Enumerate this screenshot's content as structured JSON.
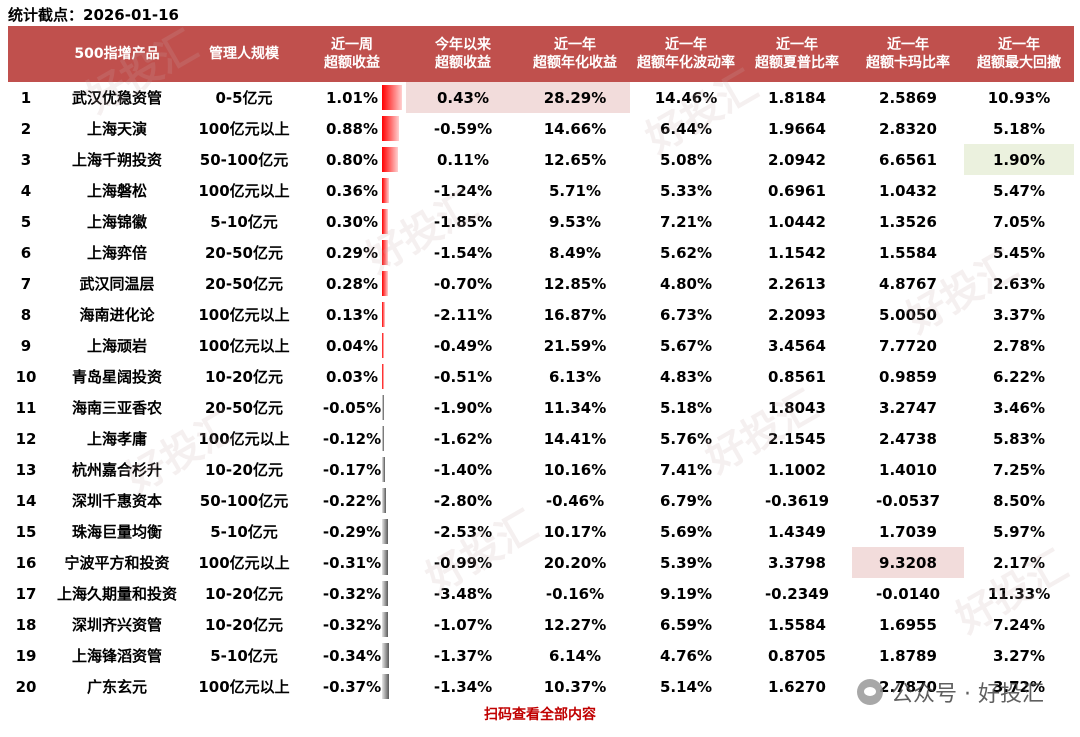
{
  "stat_date": "统计截点：2026-01-16",
  "headers": [
    "",
    "500指增产品",
    "管理人规模",
    "近一周\n超额收益",
    "今年以来\n超额收益",
    "近一年\n超额年化收益",
    "近一年\n超额年化波动率",
    "近一年\n超额夏普比率",
    "近一年\n超额卡玛比率",
    "近一年\n超额最大回撤"
  ],
  "rows": [
    {
      "rank": "1",
      "name": "武汉优稳资管",
      "scale": "0-5亿元",
      "week": "1.01%",
      "ytd": "0.43%",
      "ann_ret": "28.29%",
      "vol": "14.46%",
      "sharpe": "1.8184",
      "calmar": "2.5869",
      "mdd": "10.93%"
    },
    {
      "rank": "2",
      "name": "上海天演",
      "scale": "100亿元以上",
      "week": "0.88%",
      "ytd": "-0.59%",
      "ann_ret": "14.66%",
      "vol": "6.44%",
      "sharpe": "1.9664",
      "calmar": "2.8320",
      "mdd": "5.18%"
    },
    {
      "rank": "3",
      "name": "上海千朔投资",
      "scale": "50-100亿元",
      "week": "0.80%",
      "ytd": "0.11%",
      "ann_ret": "12.65%",
      "vol": "5.08%",
      "sharpe": "2.0942",
      "calmar": "6.6561",
      "mdd": "1.90%"
    },
    {
      "rank": "4",
      "name": "上海磐松",
      "scale": "100亿元以上",
      "week": "0.36%",
      "ytd": "-1.24%",
      "ann_ret": "5.71%",
      "vol": "5.33%",
      "sharpe": "0.6961",
      "calmar": "1.0432",
      "mdd": "5.47%"
    },
    {
      "rank": "5",
      "name": "上海锦徽",
      "scale": "5-10亿元",
      "week": "0.30%",
      "ytd": "-1.85%",
      "ann_ret": "9.53%",
      "vol": "7.21%",
      "sharpe": "1.0442",
      "calmar": "1.3526",
      "mdd": "7.05%"
    },
    {
      "rank": "6",
      "name": "上海弈倍",
      "scale": "20-50亿元",
      "week": "0.29%",
      "ytd": "-1.54%",
      "ann_ret": "8.49%",
      "vol": "5.62%",
      "sharpe": "1.1542",
      "calmar": "1.5584",
      "mdd": "5.45%"
    },
    {
      "rank": "7",
      "name": "武汉同温层",
      "scale": "20-50亿元",
      "week": "0.28%",
      "ytd": "-0.70%",
      "ann_ret": "12.85%",
      "vol": "4.80%",
      "sharpe": "2.2613",
      "calmar": "4.8767",
      "mdd": "2.63%"
    },
    {
      "rank": "8",
      "name": "海南进化论",
      "scale": "100亿元以上",
      "week": "0.13%",
      "ytd": "-2.11%",
      "ann_ret": "16.87%",
      "vol": "6.73%",
      "sharpe": "2.2093",
      "calmar": "5.0050",
      "mdd": "3.37%"
    },
    {
      "rank": "9",
      "name": "上海顽岩",
      "scale": "100亿元以上",
      "week": "0.04%",
      "ytd": "-0.49%",
      "ann_ret": "21.59%",
      "vol": "5.67%",
      "sharpe": "3.4564",
      "calmar": "7.7720",
      "mdd": "2.78%"
    },
    {
      "rank": "10",
      "name": "青岛星阔投资",
      "scale": "10-20亿元",
      "week": "0.03%",
      "ytd": "-0.51%",
      "ann_ret": "6.13%",
      "vol": "4.83%",
      "sharpe": "0.8561",
      "calmar": "0.9859",
      "mdd": "6.22%"
    },
    {
      "rank": "11",
      "name": "海南三亚香农",
      "scale": "20-50亿元",
      "week": "-0.05%",
      "ytd": "-1.90%",
      "ann_ret": "11.34%",
      "vol": "5.18%",
      "sharpe": "1.8043",
      "calmar": "3.2747",
      "mdd": "3.46%"
    },
    {
      "rank": "12",
      "name": "上海孝庸",
      "scale": "100亿元以上",
      "week": "-0.12%",
      "ytd": "-1.62%",
      "ann_ret": "14.41%",
      "vol": "5.76%",
      "sharpe": "2.1545",
      "calmar": "2.4738",
      "mdd": "5.83%"
    },
    {
      "rank": "13",
      "name": "杭州嘉合杉升",
      "scale": "10-20亿元",
      "week": "-0.17%",
      "ytd": "-1.40%",
      "ann_ret": "10.16%",
      "vol": "7.41%",
      "sharpe": "1.1002",
      "calmar": "1.4010",
      "mdd": "7.25%"
    },
    {
      "rank": "14",
      "name": "深圳千惠资本",
      "scale": "50-100亿元",
      "week": "-0.22%",
      "ytd": "-2.80%",
      "ann_ret": "-0.46%",
      "vol": "6.79%",
      "sharpe": "-0.3619",
      "calmar": "-0.0537",
      "mdd": "8.50%"
    },
    {
      "rank": "15",
      "name": "珠海巨量均衡",
      "scale": "5-10亿元",
      "week": "-0.29%",
      "ytd": "-2.53%",
      "ann_ret": "10.17%",
      "vol": "5.69%",
      "sharpe": "1.4349",
      "calmar": "1.7039",
      "mdd": "5.97%"
    },
    {
      "rank": "16",
      "name": "宁波平方和投资",
      "scale": "100亿元以上",
      "week": "-0.31%",
      "ytd": "-0.99%",
      "ann_ret": "20.20%",
      "vol": "5.39%",
      "sharpe": "3.3798",
      "calmar": "9.3208",
      "mdd": "2.17%"
    },
    {
      "rank": "17",
      "name": "上海久期量和投资",
      "scale": "10-20亿元",
      "week": "-0.32%",
      "ytd": "-3.48%",
      "ann_ret": "-0.16%",
      "vol": "9.19%",
      "sharpe": "-0.2349",
      "calmar": "-0.0140",
      "mdd": "11.33%"
    },
    {
      "rank": "18",
      "name": "深圳齐兴资管",
      "scale": "10-20亿元",
      "week": "-0.32%",
      "ytd": "-1.07%",
      "ann_ret": "12.27%",
      "vol": "6.59%",
      "sharpe": "1.5584",
      "calmar": "1.6955",
      "mdd": "7.24%"
    },
    {
      "rank": "19",
      "name": "上海锋滔资管",
      "scale": "5-10亿元",
      "week": "-0.34%",
      "ytd": "-1.37%",
      "ann_ret": "6.14%",
      "vol": "4.76%",
      "sharpe": "0.8705",
      "calmar": "1.8789",
      "mdd": "3.27%"
    },
    {
      "rank": "20",
      "name": "广东玄元",
      "scale": "100亿元以上",
      "week": "-0.37%",
      "ytd": "-1.34%",
      "ann_ret": "10.37%",
      "vol": "5.14%",
      "sharpe": "1.6270",
      "calmar": "2.7870",
      "mdd": "3.72%"
    }
  ],
  "week_values": [
    1.01,
    0.88,
    0.8,
    0.36,
    0.3,
    0.29,
    0.28,
    0.13,
    0.04,
    0.03,
    -0.05,
    -0.12,
    -0.17,
    -0.22,
    -0.29,
    -0.31,
    -0.32,
    -0.32,
    -0.34,
    -0.37
  ],
  "colors": {
    "header_bg": "#c0504d",
    "bar_pos": "#ff0000",
    "bar_neg": "#595959",
    "highlight_pink": "#f2dcdb",
    "highlight_green": "#ebf1de",
    "footer_text": "#c00000"
  },
  "highlights": [
    {
      "row": 0,
      "col": "ytd",
      "style": "pink"
    },
    {
      "row": 0,
      "col": "ann_ret",
      "style": "pink"
    },
    {
      "row": 2,
      "col": "mdd",
      "style": "green"
    },
    {
      "row": 15,
      "col": "calmar",
      "style": "pink"
    }
  ],
  "footer_link": "扫码查看全部内容",
  "watermark_corner": "公众号 · 好投汇",
  "watermark_diag": "好投汇"
}
